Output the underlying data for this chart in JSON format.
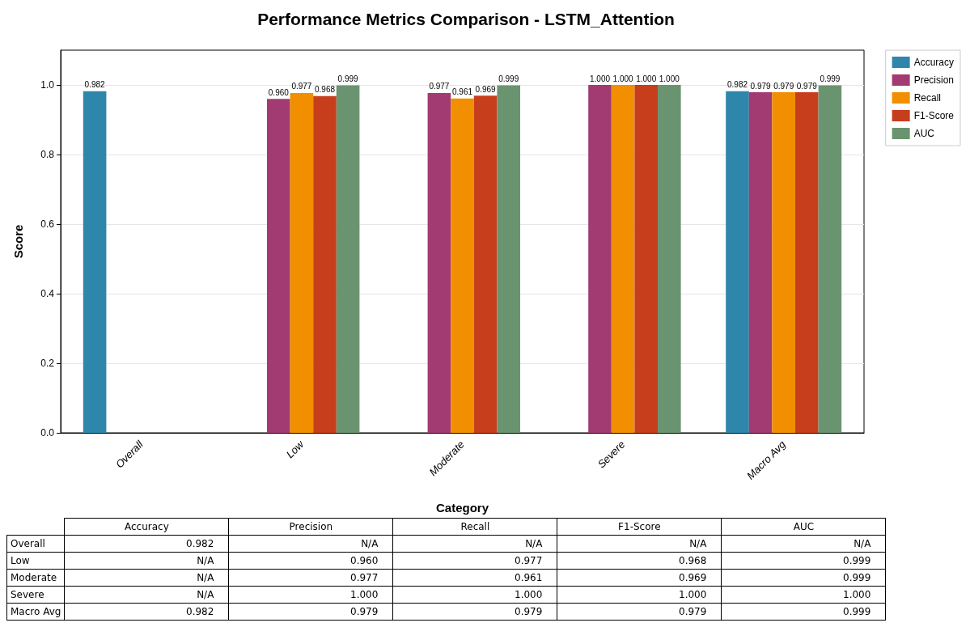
{
  "chart_data": {
    "type": "bar",
    "title": "Performance Metrics Comparison - LSTM_Attention",
    "xlabel": "Category",
    "ylabel": "Score",
    "categories": [
      "Overall",
      "Low",
      "Moderate",
      "Severe",
      "Macro Avg"
    ],
    "series": [
      {
        "name": "Accuracy",
        "color": "#2e86ab",
        "values": [
          0.982,
          null,
          null,
          null,
          0.982
        ],
        "value_labels": [
          "0.982",
          "N/A",
          "N/A",
          "N/A",
          "0.982"
        ]
      },
      {
        "name": "Precision",
        "color": "#a23b72",
        "values": [
          null,
          0.96,
          0.977,
          1.0,
          0.979
        ],
        "value_labels": [
          "N/A",
          "0.960",
          "0.977",
          "1.000",
          "0.979"
        ]
      },
      {
        "name": "Recall",
        "color": "#f18f01",
        "values": [
          null,
          0.977,
          0.961,
          1.0,
          0.979
        ],
        "value_labels": [
          "N/A",
          "0.977",
          "0.961",
          "1.000",
          "0.979"
        ]
      },
      {
        "name": "F1-Score",
        "color": "#c73e1d",
        "values": [
          null,
          0.968,
          0.969,
          1.0,
          0.979
        ],
        "value_labels": [
          "N/A",
          "0.968",
          "0.969",
          "1.000",
          "0.979"
        ]
      },
      {
        "name": "AUC",
        "color": "#6a9470",
        "values": [
          null,
          0.999,
          0.999,
          1.0,
          0.999
        ],
        "value_labels": [
          "N/A",
          "0.999",
          "0.999",
          "1.000",
          "0.999"
        ]
      }
    ],
    "ylim": [
      0,
      1.1
    ],
    "yticks": [
      {
        "value": 0,
        "label": "0.0"
      },
      0.2,
      0.4,
      0.6,
      0.8,
      {
        "value": 1,
        "label": "1.0"
      }
    ],
    "grid": "y",
    "legend": "top right"
  }
}
